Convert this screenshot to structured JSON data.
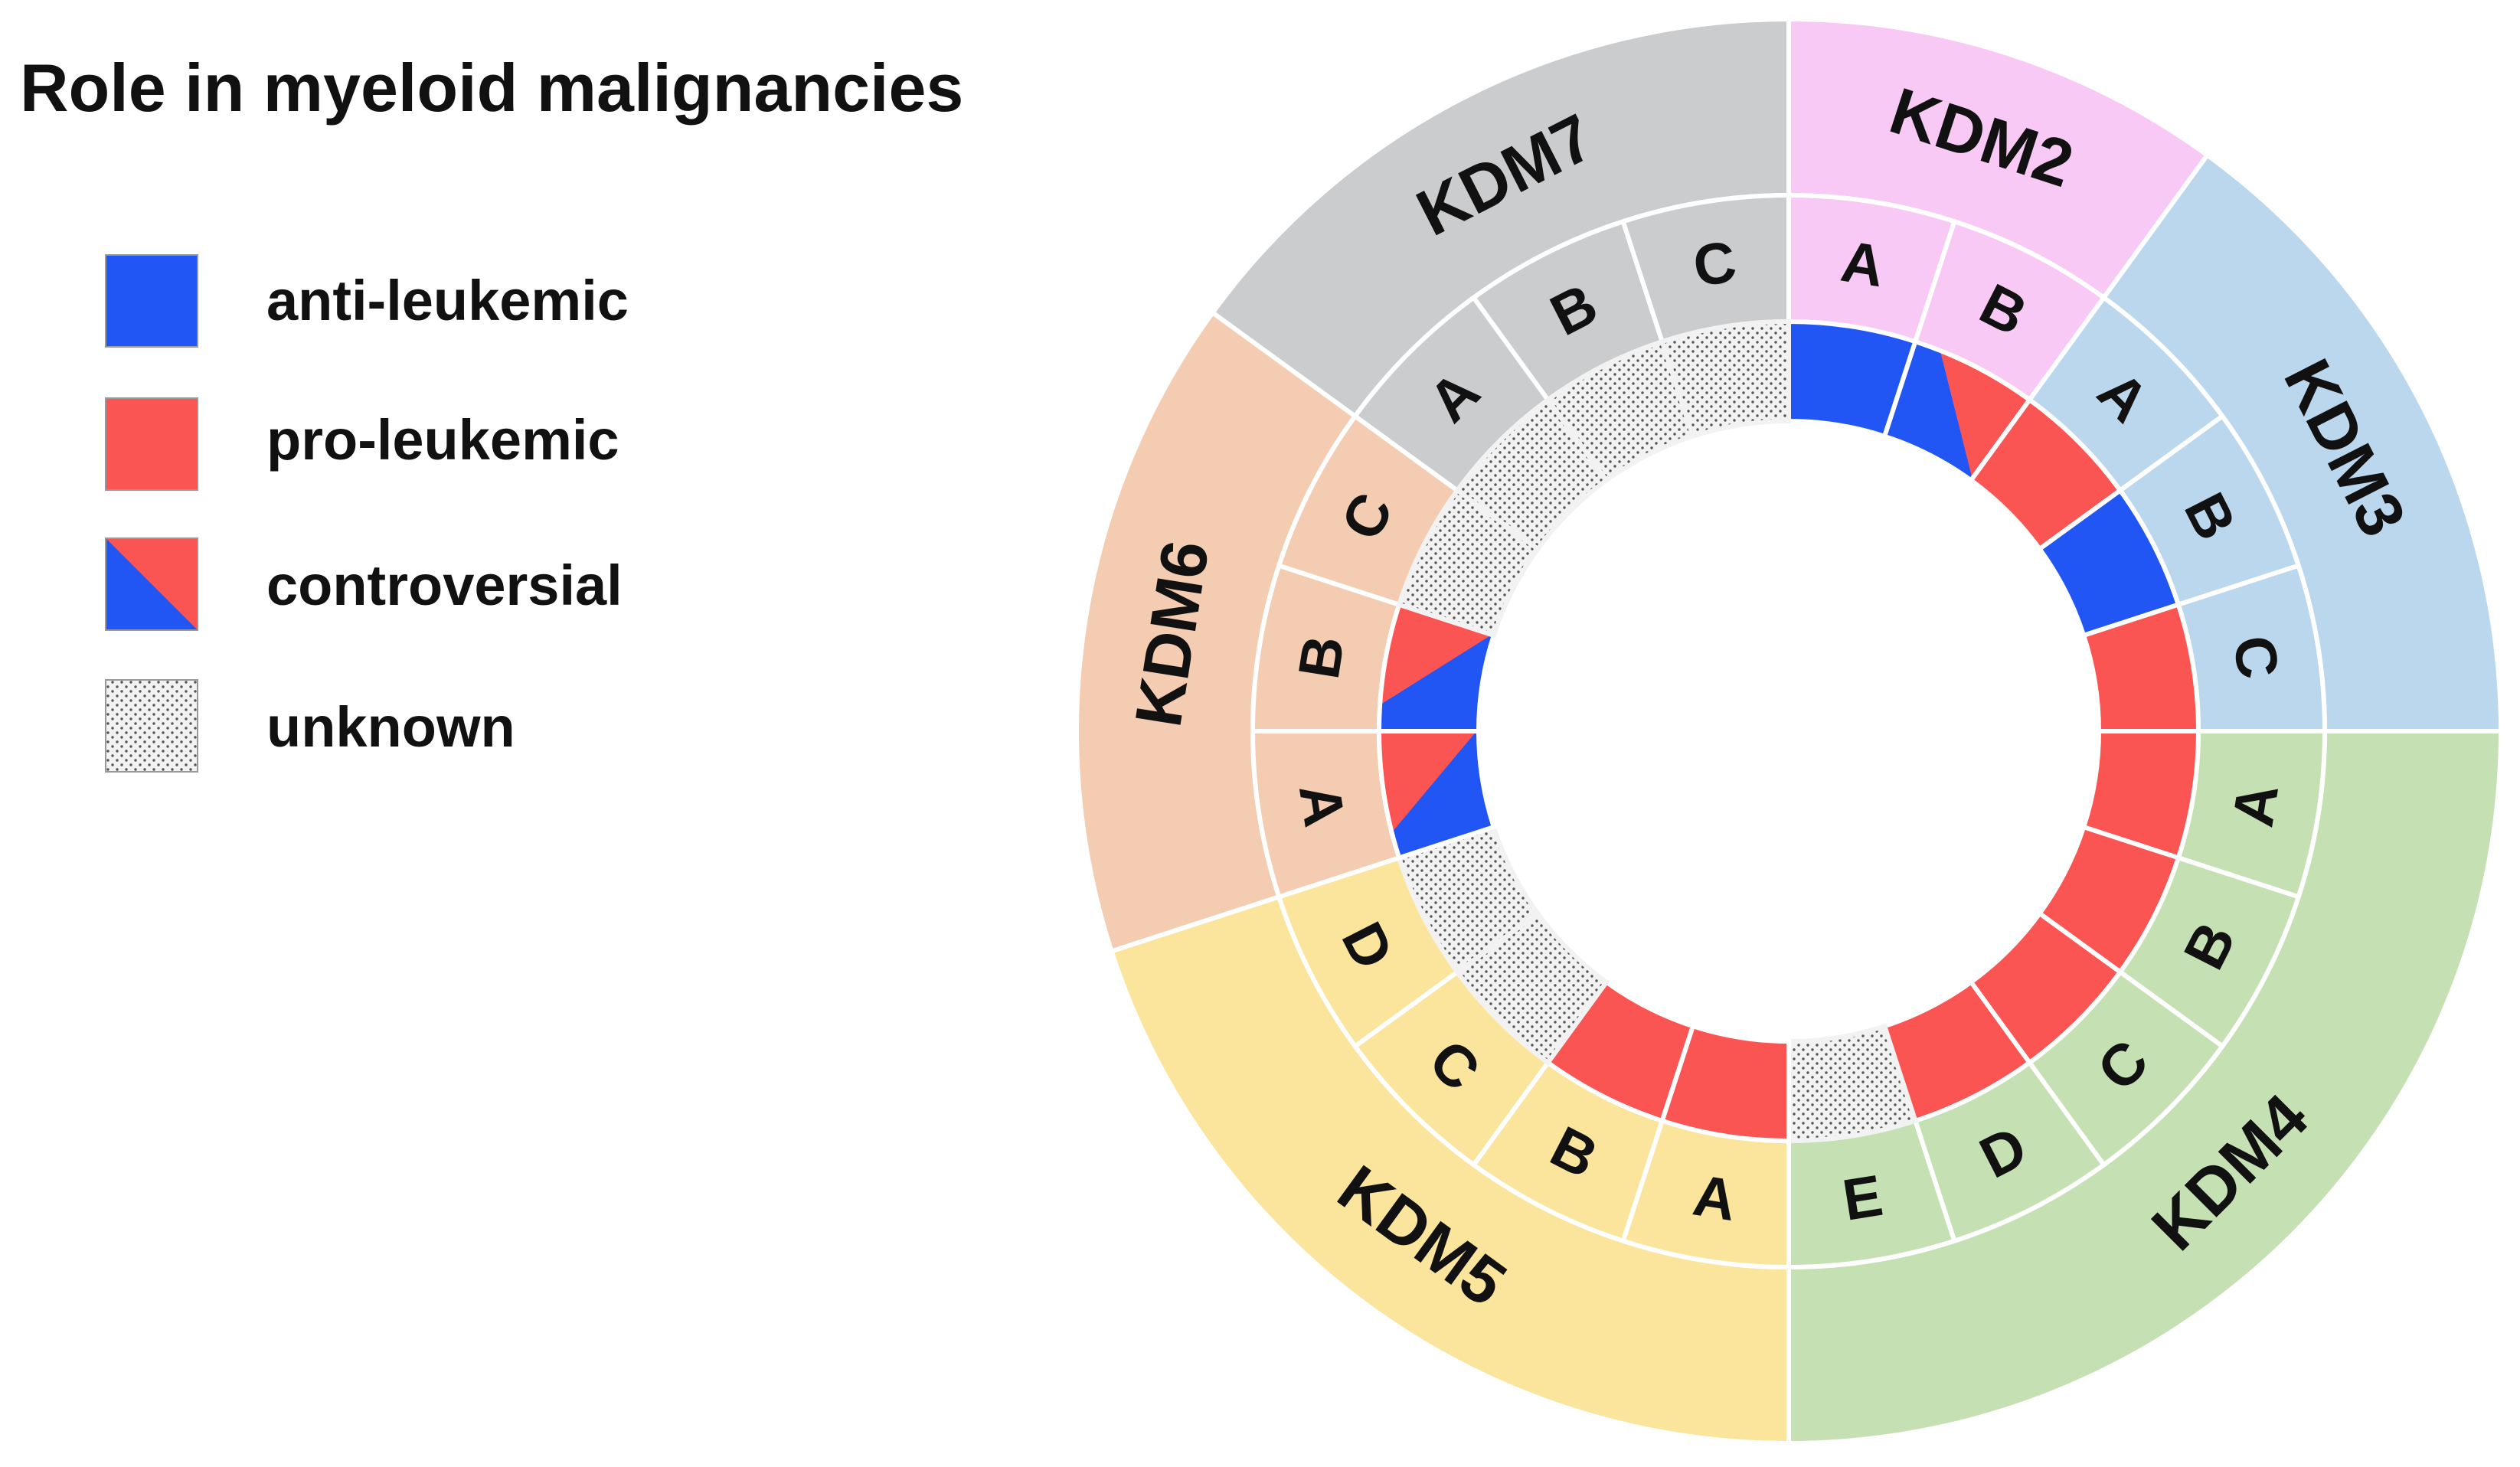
{
  "title": "Role in myeloid malignancies",
  "colors": {
    "anti": "#2156f5",
    "pro": "#fb5553",
    "unknown_bg": "#f2f2f2",
    "unknown_dot": "#555555",
    "outline": "#ffffff"
  },
  "legend": [
    {
      "key": "anti",
      "label": "anti-leukemic"
    },
    {
      "key": "pro",
      "label": "pro-leukemic"
    },
    {
      "key": "controversial",
      "label": "controversial"
    },
    {
      "key": "unknown",
      "label": "unknown"
    }
  ],
  "families": [
    {
      "name": "KDM2",
      "color": "#f8c9f4",
      "members": [
        {
          "label": "A",
          "role": "anti"
        },
        {
          "label": "B",
          "role": "controversial"
        }
      ]
    },
    {
      "name": "KDM3",
      "color": "#bbd7ee",
      "members": [
        {
          "label": "A",
          "role": "pro"
        },
        {
          "label": "B",
          "role": "anti"
        },
        {
          "label": "C",
          "role": "pro"
        }
      ]
    },
    {
      "name": "KDM4",
      "color": "#c5e1b4",
      "members": [
        {
          "label": "A",
          "role": "pro"
        },
        {
          "label": "B",
          "role": "pro"
        },
        {
          "label": "C",
          "role": "pro"
        },
        {
          "label": "D",
          "role": "pro"
        },
        {
          "label": "E",
          "role": "unknown"
        }
      ]
    },
    {
      "name": "KDM5",
      "color": "#fbe59c",
      "members": [
        {
          "label": "A",
          "role": "pro"
        },
        {
          "label": "B",
          "role": "pro"
        },
        {
          "label": "C",
          "role": "unknown"
        },
        {
          "label": "D",
          "role": "unknown"
        }
      ]
    },
    {
      "name": "KDM6",
      "color": "#f3ccb2",
      "members": [
        {
          "label": "A",
          "role": "controversial"
        },
        {
          "label": "B",
          "role": "controversial"
        },
        {
          "label": "C",
          "role": "unknown"
        }
      ]
    },
    {
      "name": "KDM7",
      "color": "#cbcccd",
      "members": [
        {
          "label": "A",
          "role": "unknown"
        },
        {
          "label": "B",
          "role": "unknown"
        },
        {
          "label": "C",
          "role": "unknown"
        }
      ]
    }
  ]
}
